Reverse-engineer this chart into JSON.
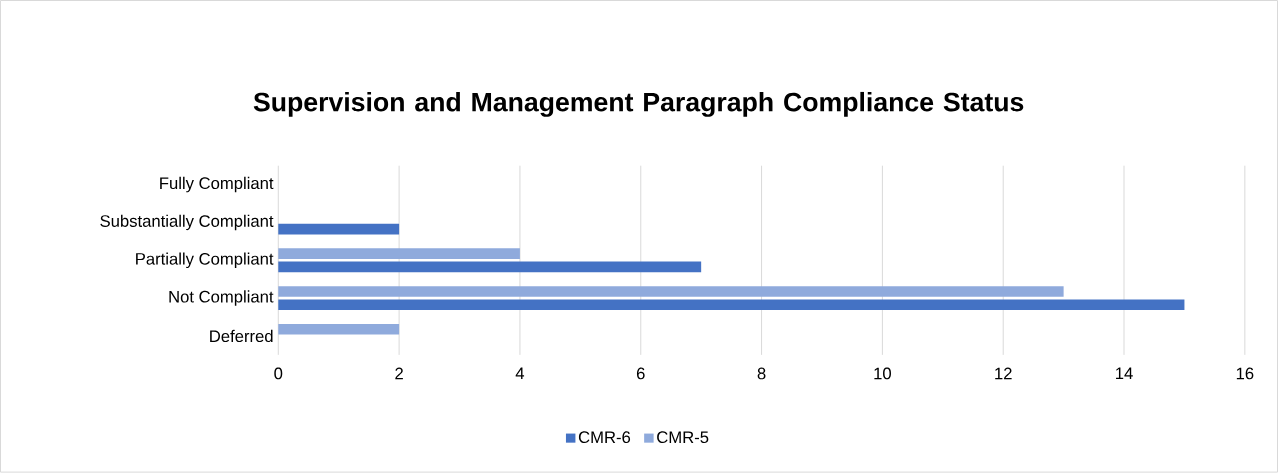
{
  "chart_data": {
    "type": "bar",
    "orientation": "horizontal",
    "title": "Supervision and Management Paragraph Compliance Status",
    "categories": [
      "Fully Compliant",
      "Substantially Compliant",
      "Partially Compliant",
      "Not Compliant",
      "Deferred"
    ],
    "series": [
      {
        "name": "CMR-6",
        "color": "#4472c4",
        "values": [
          0,
          2,
          7,
          15,
          0
        ]
      },
      {
        "name": "CMR-5",
        "color": "#8faadc",
        "values": [
          0,
          0,
          4,
          13,
          2
        ]
      }
    ],
    "xlim": [
      0,
      16
    ],
    "xticks": [
      0,
      2,
      4,
      6,
      8,
      10,
      12,
      14,
      16
    ],
    "grid": "x",
    "legend": "bottom"
  }
}
